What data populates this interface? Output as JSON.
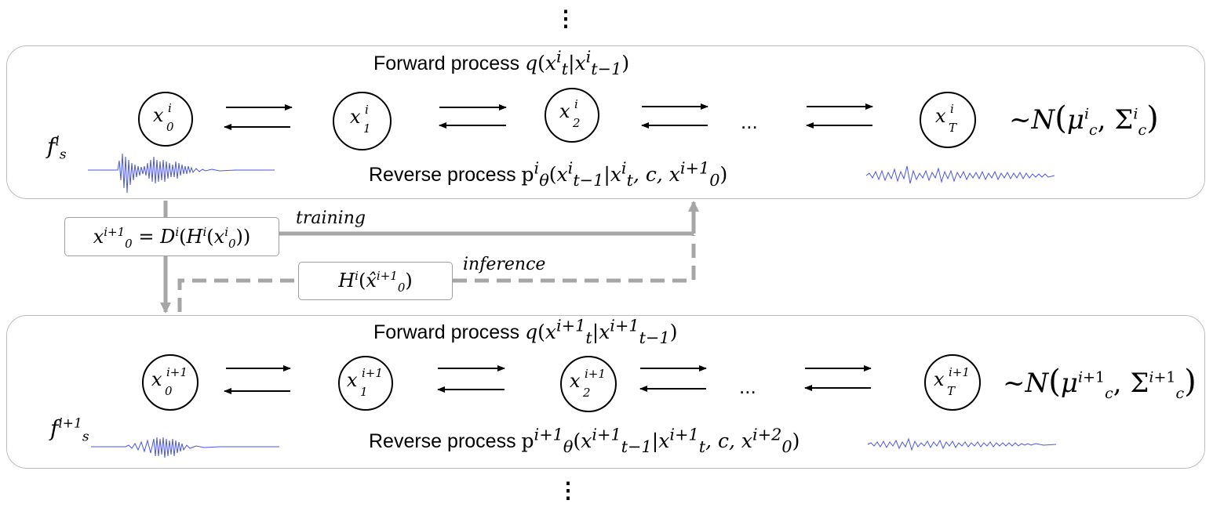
{
  "top_ellipsis": "⋮",
  "bottom_ellipsis": "⋮",
  "stage_i": {
    "forward_label": "Forward process",
    "forward_formula": "q(x_t^i | x_{t-1}^i)",
    "reverse_label": "Reverse process",
    "reverse_formula": "p_θ^i(x_{t-1}^i | x_t^i, c, x_0^{i+1})",
    "nodes": [
      {
        "base": "x",
        "sup": "i",
        "sub": "0"
      },
      {
        "base": "x",
        "sup": "i",
        "sub": "1"
      },
      {
        "base": "x",
        "sup": "i",
        "sub": "2"
      },
      {
        "base": "x",
        "sup": "i",
        "sub": "T"
      }
    ],
    "ellipsis": "...",
    "distribution": "~N(μ_c^i, Σ_c^i)",
    "fs_label": "f_s^i"
  },
  "stage_i1": {
    "forward_label": "Forward process",
    "forward_formula": "q(x_t^{i+1} | x_{t-1}^{i+1})",
    "reverse_label": "Reverse process",
    "reverse_formula": "p_θ^{i+1}(x_{t-1}^{i+1} | x_t^{i+1}, c, x_0^{i+2})",
    "nodes": [
      {
        "base": "x",
        "sup": "i+1",
        "sub": "0"
      },
      {
        "base": "x",
        "sup": "i+1",
        "sub": "1"
      },
      {
        "base": "x",
        "sup": "i+1",
        "sub": "2"
      },
      {
        "base": "x",
        "sup": "i+1",
        "sub": "T"
      }
    ],
    "ellipsis": "...",
    "distribution": "~N(μ_c^{i+1}, Σ_c^{i+1})",
    "fs_label": "f_s^{i+1}"
  },
  "links": {
    "training_box": "x_0^{i+1} = D^i(H^i(x_0^i))",
    "training_label": "training",
    "inference_box": "H^i(x̂_0^{i+1})",
    "inference_label": "inference"
  },
  "colors": {
    "waveform": "#4a55e8",
    "connector": "#a6a6a6",
    "panel_border": "#bdbdbd"
  }
}
